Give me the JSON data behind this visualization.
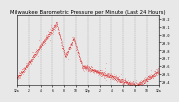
{
  "title": "Milwaukee Barometric Pressure per Minute (Last 24 Hours)",
  "title_fontsize": 3.8,
  "line_color": "#dd0000",
  "bg_color": "#e8e8e8",
  "plot_bg_color": "#e8e8e8",
  "grid_color": "#888888",
  "y_min": 29.35,
  "y_max": 30.25,
  "y_ticks": [
    29.4,
    29.5,
    29.6,
    29.7,
    29.8,
    29.9,
    30.0,
    30.1,
    30.2
  ],
  "y_tick_labels": [
    "29.4",
    "29.5",
    "29.6",
    "29.7",
    "29.8",
    "29.9",
    "30.0",
    "30.1",
    "30.2"
  ],
  "num_points": 1440,
  "seed": 7
}
